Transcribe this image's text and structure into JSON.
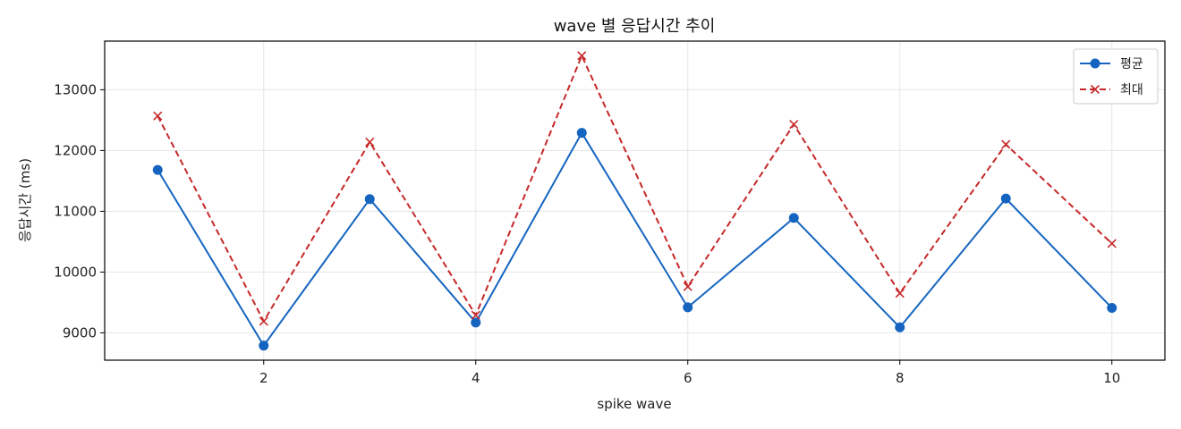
{
  "chart_data": {
    "type": "line",
    "title": "wave 별 응답시간 추이",
    "xlabel": "spike wave",
    "ylabel": "응답시간 (ms)",
    "x": [
      1,
      2,
      3,
      4,
      5,
      6,
      7,
      8,
      9,
      10
    ],
    "xticks": [
      2,
      4,
      6,
      8,
      10
    ],
    "yticks": [
      9000,
      10000,
      11000,
      12000,
      13000
    ],
    "xlim": [
      0.5,
      10.5
    ],
    "ylim": [
      8550,
      13800
    ],
    "grid": true,
    "legend_position": "top-right",
    "series": [
      {
        "name": "평균",
        "color": "#1565c0",
        "line_style": "solid",
        "marker": "circle",
        "values": [
          11680,
          8790,
          11200,
          9170,
          12290,
          9420,
          10890,
          9090,
          11210,
          9410
        ]
      },
      {
        "name": "최대",
        "color": "#c62828",
        "line_style": "dashed",
        "marker": "x",
        "values": [
          12570,
          9190,
          12140,
          9290,
          13560,
          9760,
          12430,
          9650,
          12100,
          10470
        ]
      }
    ]
  }
}
